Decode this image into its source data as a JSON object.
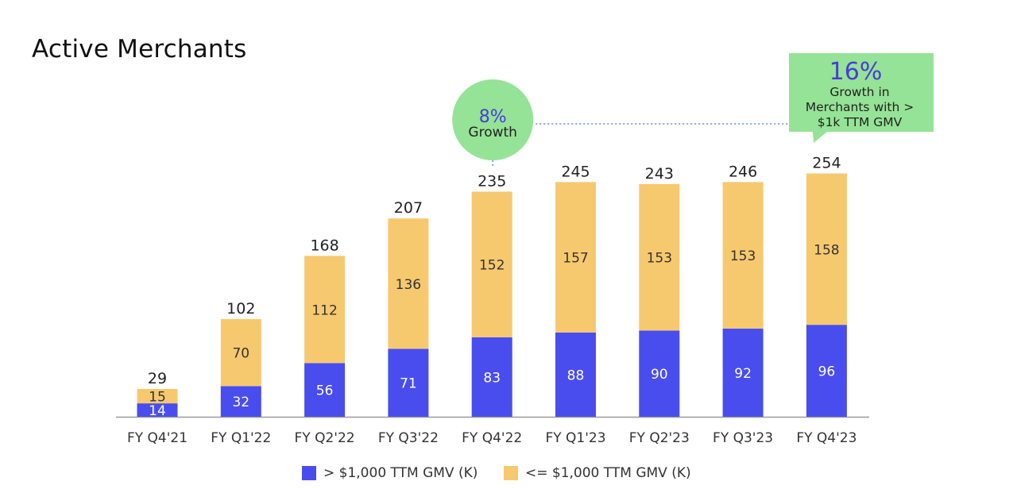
{
  "title": "Active Merchants",
  "colors": {
    "above": "#4a4ded",
    "below": "#f6c96f",
    "callout": "#95e396",
    "callout_accent": "#4a3bd9",
    "axis": "#9a9a9a",
    "dotted": "#5b8ef0"
  },
  "chart_data": {
    "type": "bar",
    "stacked": true,
    "categories": [
      "FY Q4'21",
      "FY Q1'22",
      "FY Q2'22",
      "FY Q3'22",
      "FY Q4'22",
      "FY Q1'23",
      "FY Q2'23",
      "FY Q3'23",
      "FY Q4'23"
    ],
    "series": [
      {
        "name": "> $1,000 TTM GMV (K)",
        "values": [
          14,
          32,
          56,
          71,
          83,
          88,
          90,
          92,
          96
        ]
      },
      {
        "name": "<= $1,000 TTM GMV (K)",
        "values": [
          15,
          70,
          112,
          136,
          152,
          157,
          153,
          153,
          158
        ]
      }
    ],
    "totals": [
      29,
      102,
      168,
      207,
      235,
      245,
      243,
      246,
      254
    ],
    "ylim": [
      0,
      260
    ],
    "grid": false,
    "legend_position": "bottom",
    "annotations": {
      "growth_circle": {
        "pct": "8%",
        "text": "Growth"
      },
      "growth_box": {
        "pct": "16%",
        "lines": [
          "Growth in",
          "Merchants with >",
          "$1k TTM GMV"
        ]
      }
    }
  }
}
